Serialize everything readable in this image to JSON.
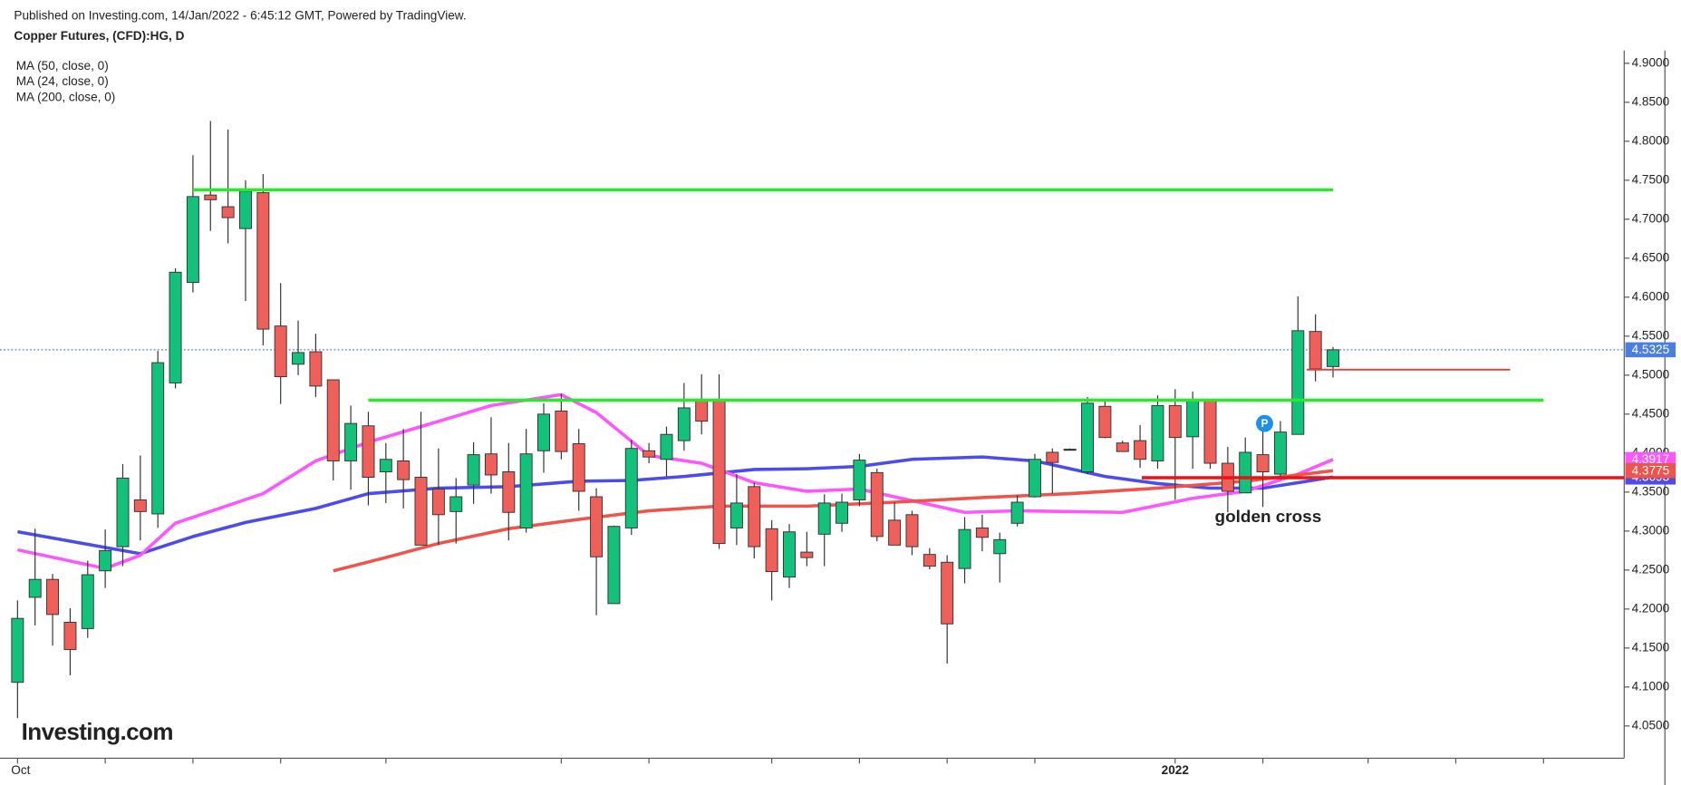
{
  "chart_data": {
    "type": "candlestick",
    "subtitle": "Published on Investing.com, 14/Jan/2022 - 6:45:12 GMT, Powered by TradingView.",
    "title": "Copper Futures, (CFD):HG, D",
    "logo": "Investing.com",
    "up_color": "#12c27a",
    "down_color": "#f0605a",
    "open": [
      4.106,
      4.215,
      4.238,
      4.183,
      4.175,
      4.249,
      4.28,
      4.34,
      4.322,
      4.49,
      4.619,
      4.731,
      4.716,
      4.688,
      4.734,
      4.563,
      4.514,
      4.53,
      4.494,
      4.39,
      4.435,
      4.376,
      4.39,
      4.369,
      4.354,
      4.325,
      4.359,
      4.399,
      4.376,
      4.304,
      4.403,
      4.454,
      4.412,
      4.344,
      4.207,
      4.304,
      4.403,
      4.392,
      4.416,
      4.469,
      4.469,
      4.304,
      4.357,
      4.303,
      4.241,
      4.273,
      4.296,
      4.31,
      4.34,
      4.375,
      4.314,
      4.321,
      4.27,
      4.26,
      4.252,
      4.304,
      4.271,
      4.31,
      4.344,
      4.401,
      4.405,
      4.376,
      4.46,
      4.413,
      4.416,
      4.39,
      4.461,
      4.421,
      4.467,
      4.387,
      4.349,
      4.398,
      4.373,
      4.424,
      4.556,
      4.511
    ],
    "high": [
      4.211,
      4.303,
      4.245,
      4.201,
      4.262,
      4.302,
      4.386,
      4.397,
      4.531,
      4.637,
      4.782,
      4.826,
      4.815,
      4.75,
      4.758,
      4.618,
      4.57,
      4.553,
      4.494,
      4.461,
      4.453,
      4.413,
      4.431,
      4.453,
      4.406,
      4.368,
      4.414,
      4.446,
      4.413,
      4.431,
      4.464,
      4.476,
      4.431,
      4.355,
      4.307,
      4.417,
      4.413,
      4.434,
      4.49,
      4.501,
      4.501,
      4.373,
      4.362,
      4.314,
      4.309,
      4.299,
      4.347,
      4.348,
      4.399,
      4.38,
      4.337,
      4.326,
      4.278,
      4.269,
      4.318,
      4.321,
      4.298,
      4.346,
      4.399,
      4.406,
      4.406,
      4.472,
      4.468,
      4.416,
      4.436,
      4.474,
      4.482,
      4.479,
      4.467,
      4.408,
      4.42,
      4.431,
      4.441,
      4.601,
      4.578,
      4.536
    ],
    "low": [
      4.06,
      4.179,
      4.153,
      4.115,
      4.163,
      4.227,
      4.255,
      4.288,
      4.304,
      4.483,
      4.606,
      4.685,
      4.669,
      4.595,
      4.538,
      4.463,
      4.5,
      4.472,
      4.365,
      4.353,
      4.333,
      4.336,
      4.329,
      4.282,
      4.282,
      4.284,
      4.335,
      4.348,
      4.288,
      4.298,
      4.375,
      4.392,
      4.326,
      4.192,
      4.207,
      4.295,
      4.387,
      4.37,
      4.403,
      4.424,
      4.277,
      4.282,
      4.265,
      4.211,
      4.227,
      4.255,
      4.255,
      4.299,
      4.332,
      4.287,
      4.282,
      4.269,
      4.251,
      4.13,
      4.233,
      4.274,
      4.234,
      4.306,
      4.343,
      4.348,
      4.404,
      4.373,
      4.419,
      4.402,
      4.381,
      4.38,
      4.34,
      4.38,
      4.38,
      4.324,
      4.349,
      4.331,
      4.366,
      4.424,
      4.492,
      4.497
    ],
    "close": [
      4.188,
      4.238,
      4.193,
      4.148,
      4.244,
      4.275,
      4.368,
      4.325,
      4.516,
      4.632,
      4.729,
      4.725,
      4.702,
      4.736,
      4.559,
      4.498,
      4.529,
      4.486,
      4.39,
      4.438,
      4.369,
      4.392,
      4.366,
      4.282,
      4.321,
      4.344,
      4.398,
      4.372,
      4.324,
      4.399,
      4.45,
      4.402,
      4.351,
      4.267,
      4.306,
      4.406,
      4.395,
      4.424,
      4.458,
      4.441,
      4.284,
      4.336,
      4.28,
      4.248,
      4.299,
      4.266,
      4.336,
      4.337,
      4.391,
      4.293,
      4.282,
      4.28,
      4.255,
      4.181,
      4.302,
      4.292,
      4.289,
      4.337,
      4.392,
      4.388,
      4.405,
      4.464,
      4.42,
      4.402,
      4.392,
      4.461,
      4.42,
      4.468,
      4.387,
      4.351,
      4.401,
      4.376,
      4.427,
      4.557,
      4.508,
      4.5325
    ],
    "last_price_color": "#4a7ee0",
    "series": [
      {
        "name": "MA (50, close, 0)",
        "color": "#4b4bee",
        "x": [
          0,
          7,
          10,
          13,
          17,
          20,
          24,
          28,
          32,
          35,
          38,
          42,
          45,
          48,
          51,
          55,
          58,
          62,
          65,
          68,
          71,
          73,
          75
        ],
        "values": [
          4.299,
          4.271,
          4.293,
          4.311,
          4.329,
          4.348,
          4.355,
          4.357,
          4.364,
          4.365,
          4.37,
          4.379,
          4.38,
          4.383,
          4.392,
          4.395,
          4.39,
          4.37,
          4.361,
          4.355,
          4.355,
          4.362,
          4.3693
        ]
      },
      {
        "name": "MA (24, close, 0)",
        "color": "#ff55ff",
        "x": [
          0,
          5,
          7,
          9,
          14,
          17,
          20,
          23,
          27,
          31,
          33,
          36,
          39,
          42,
          45,
          48,
          51,
          54,
          57,
          63,
          67,
          70,
          73,
          75
        ],
        "values": [
          4.276,
          4.252,
          4.269,
          4.31,
          4.348,
          4.39,
          4.414,
          4.434,
          4.461,
          4.475,
          4.452,
          4.397,
          4.387,
          4.362,
          4.351,
          4.354,
          4.339,
          4.324,
          4.326,
          4.324,
          4.342,
          4.351,
          4.373,
          4.3917
        ]
      },
      {
        "name": "MA (200, close, 0)",
        "color": "#f0534a",
        "x": [
          18,
          21,
          24,
          28,
          32,
          36,
          40,
          45,
          50,
          55,
          60,
          65,
          70,
          75
        ],
        "values": [
          4.249,
          4.266,
          4.284,
          4.303,
          4.315,
          4.326,
          4.332,
          4.332,
          4.337,
          4.343,
          4.348,
          4.355,
          4.364,
          4.3775
        ]
      }
    ],
    "levels": [
      {
        "value": 4.7377,
        "x": [
          10,
          75
        ],
        "color": "#22ee22",
        "width": 3
      },
      {
        "value": 4.468,
        "x": [
          20,
          87
        ],
        "color": "#22ee22",
        "width": 3
      },
      {
        "value": 4.507,
        "x": [
          73.5,
          85.1
        ],
        "color": "#f03a3a",
        "width": 1.5
      },
      {
        "value": 4.3684,
        "x": [
          64.1,
          91.6
        ],
        "color": "#ee1111",
        "width": 3
      }
    ],
    "annotations": [
      {
        "text": "golden cross",
        "x": 71.3,
        "y": 4.317
      },
      {
        "text": "P",
        "x": 71.1,
        "y": 4.438
      }
    ],
    "xlim": [
      -1,
      91.6
    ],
    "ylim": [
      4.0087,
      4.9165
    ],
    "xticks": [
      {
        "value": 0,
        "label": "Oct"
      },
      5,
      10,
      15,
      21,
      31,
      36,
      43,
      48,
      53,
      58,
      {
        "value": 66,
        "label": "2022"
      },
      71,
      77,
      82,
      87
    ],
    "yticks": [
      {
        "value": 4.05,
        "label": "4.0500"
      },
      {
        "value": 4.1,
        "label": "4.1000"
      },
      {
        "value": 4.15,
        "label": "4.1500"
      },
      {
        "value": 4.2,
        "label": "4.2000"
      },
      {
        "value": 4.25,
        "label": "4.2500"
      },
      {
        "value": 4.3,
        "label": "4.3000"
      },
      {
        "value": 4.35,
        "label": "4.3500"
      },
      {
        "value": 4.4,
        "label": "4.4000"
      },
      {
        "value": 4.45,
        "label": "4.4500"
      },
      {
        "value": 4.5,
        "label": "4.5000"
      },
      {
        "value": 4.55,
        "label": "4.5500"
      },
      {
        "value": 4.6,
        "label": "4.6000"
      },
      {
        "value": 4.65,
        "label": "4.6500"
      },
      {
        "value": 4.7,
        "label": "4.7000"
      },
      {
        "value": 4.75,
        "label": "4.7500"
      },
      {
        "value": 4.8,
        "label": "4.8000"
      },
      {
        "value": 4.85,
        "label": "4.8500"
      },
      {
        "value": 4.9,
        "label": "4.9000"
      }
    ]
  }
}
